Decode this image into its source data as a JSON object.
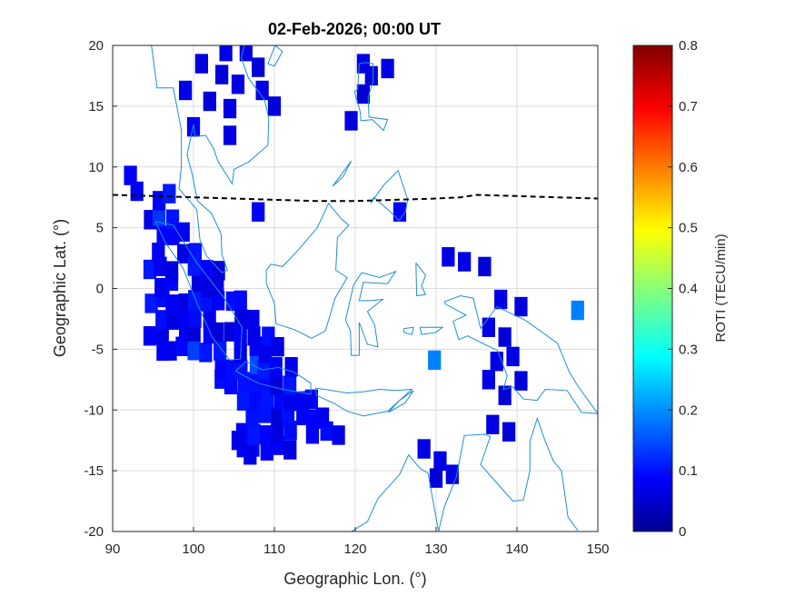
{
  "chart_data": {
    "type": "heatmap",
    "title": "02-Feb-2026; 00:00 UT",
    "xlabel": "Geographic Lon. (°)",
    "ylabel": "Geographic Lat. (°)",
    "xlim": [
      90,
      150
    ],
    "ylim": [
      -20,
      20
    ],
    "x_ticks": [
      "90",
      "100",
      "110",
      "120",
      "130",
      "140",
      "150"
    ],
    "y_ticks": [
      "20",
      "15",
      "10",
      "5",
      "0",
      "-5",
      "-10",
      "-15",
      "-20"
    ],
    "grid": true,
    "colormap": "jet",
    "colorbar": {
      "label": "ROTI (TECU/min)",
      "range": [
        0,
        0.8
      ],
      "ticks": [
        "0",
        "0.1",
        "0.2",
        "0.3",
        "0.4",
        "0.5",
        "0.6",
        "0.7",
        "0.8"
      ]
    },
    "magnetic_equator": {
      "style": "dashed",
      "color": "#000000",
      "lon": [
        90,
        95,
        100,
        105,
        110,
        115,
        120,
        125,
        130,
        133,
        135,
        140,
        145,
        150
      ],
      "lat": [
        7.7,
        7.6,
        7.5,
        7.4,
        7.3,
        7.2,
        7.2,
        7.3,
        7.4,
        7.5,
        7.7,
        7.6,
        7.5,
        7.4
      ]
    },
    "cells": [
      {
        "lon": 92.2,
        "lat": 9.3,
        "roti": 0.1
      },
      {
        "lon": 93.0,
        "lat": 8.0,
        "roti": 0.09
      },
      {
        "lon": 97.0,
        "lat": 7.8,
        "roti": 0.12
      },
      {
        "lon": 104.0,
        "lat": 19.5,
        "roti": 0.08
      },
      {
        "lon": 106.5,
        "lat": 19.5,
        "roti": 0.08
      },
      {
        "lon": 101.0,
        "lat": 18.5,
        "roti": 0.07
      },
      {
        "lon": 99.0,
        "lat": 16.3,
        "roti": 0.08
      },
      {
        "lon": 103.5,
        "lat": 17.6,
        "roti": 0.07
      },
      {
        "lon": 105.5,
        "lat": 16.8,
        "roti": 0.08
      },
      {
        "lon": 108.0,
        "lat": 18.2,
        "roti": 0.07
      },
      {
        "lon": 102.0,
        "lat": 15.4,
        "roti": 0.07
      },
      {
        "lon": 104.5,
        "lat": 14.8,
        "roti": 0.08
      },
      {
        "lon": 108.5,
        "lat": 16.3,
        "roti": 0.08
      },
      {
        "lon": 110.0,
        "lat": 15.0,
        "roti": 0.07
      },
      {
        "lon": 100.0,
        "lat": 13.3,
        "roti": 0.09
      },
      {
        "lon": 104.5,
        "lat": 12.6,
        "roti": 0.08
      },
      {
        "lon": 121.0,
        "lat": 18.5,
        "roti": 0.08
      },
      {
        "lon": 122.0,
        "lat": 17.5,
        "roti": 0.07
      },
      {
        "lon": 124.0,
        "lat": 18.1,
        "roti": 0.08
      },
      {
        "lon": 121.0,
        "lat": 16.0,
        "roti": 0.07
      },
      {
        "lon": 119.5,
        "lat": 13.8,
        "roti": 0.07
      },
      {
        "lon": 125.5,
        "lat": 6.3,
        "roti": 0.1
      },
      {
        "lon": 108.0,
        "lat": 6.3,
        "roti": 0.09
      },
      {
        "lon": 133.5,
        "lat": 2.2,
        "roti": 0.08
      },
      {
        "lon": 136.0,
        "lat": 1.8,
        "roti": 0.07
      },
      {
        "lon": 131.5,
        "lat": 2.6,
        "roti": 0.08
      },
      {
        "lon": 138.0,
        "lat": -0.9,
        "roti": 0.08
      },
      {
        "lon": 140.5,
        "lat": -1.5,
        "roti": 0.07
      },
      {
        "lon": 136.5,
        "lat": -3.2,
        "roti": 0.08
      },
      {
        "lon": 138.5,
        "lat": -4.0,
        "roti": 0.07
      },
      {
        "lon": 139.5,
        "lat": -5.6,
        "roti": 0.08
      },
      {
        "lon": 137.5,
        "lat": -6.0,
        "roti": 0.08
      },
      {
        "lon": 140.5,
        "lat": -7.6,
        "roti": 0.07
      },
      {
        "lon": 136.5,
        "lat": -7.5,
        "roti": 0.08
      },
      {
        "lon": 138.5,
        "lat": -8.8,
        "roti": 0.07
      },
      {
        "lon": 137.0,
        "lat": -11.2,
        "roti": 0.08
      },
      {
        "lon": 139.0,
        "lat": -11.8,
        "roti": 0.07
      },
      {
        "lon": 147.5,
        "lat": -1.8,
        "roti": 0.2
      },
      {
        "lon": 129.8,
        "lat": -5.9,
        "roti": 0.2
      },
      {
        "lon": 105.5,
        "lat": -12.5,
        "roti": 0.08
      },
      {
        "lon": 107.0,
        "lat": -13.7,
        "roti": 0.08
      },
      {
        "lon": 128.5,
        "lat": -13.2,
        "roti": 0.08
      },
      {
        "lon": 130.5,
        "lat": -14.2,
        "roti": 0.08
      },
      {
        "lon": 132.0,
        "lat": -15.3,
        "roti": 0.08
      },
      {
        "lon": 130.0,
        "lat": -15.6,
        "roti": 0.07
      }
    ]
  }
}
